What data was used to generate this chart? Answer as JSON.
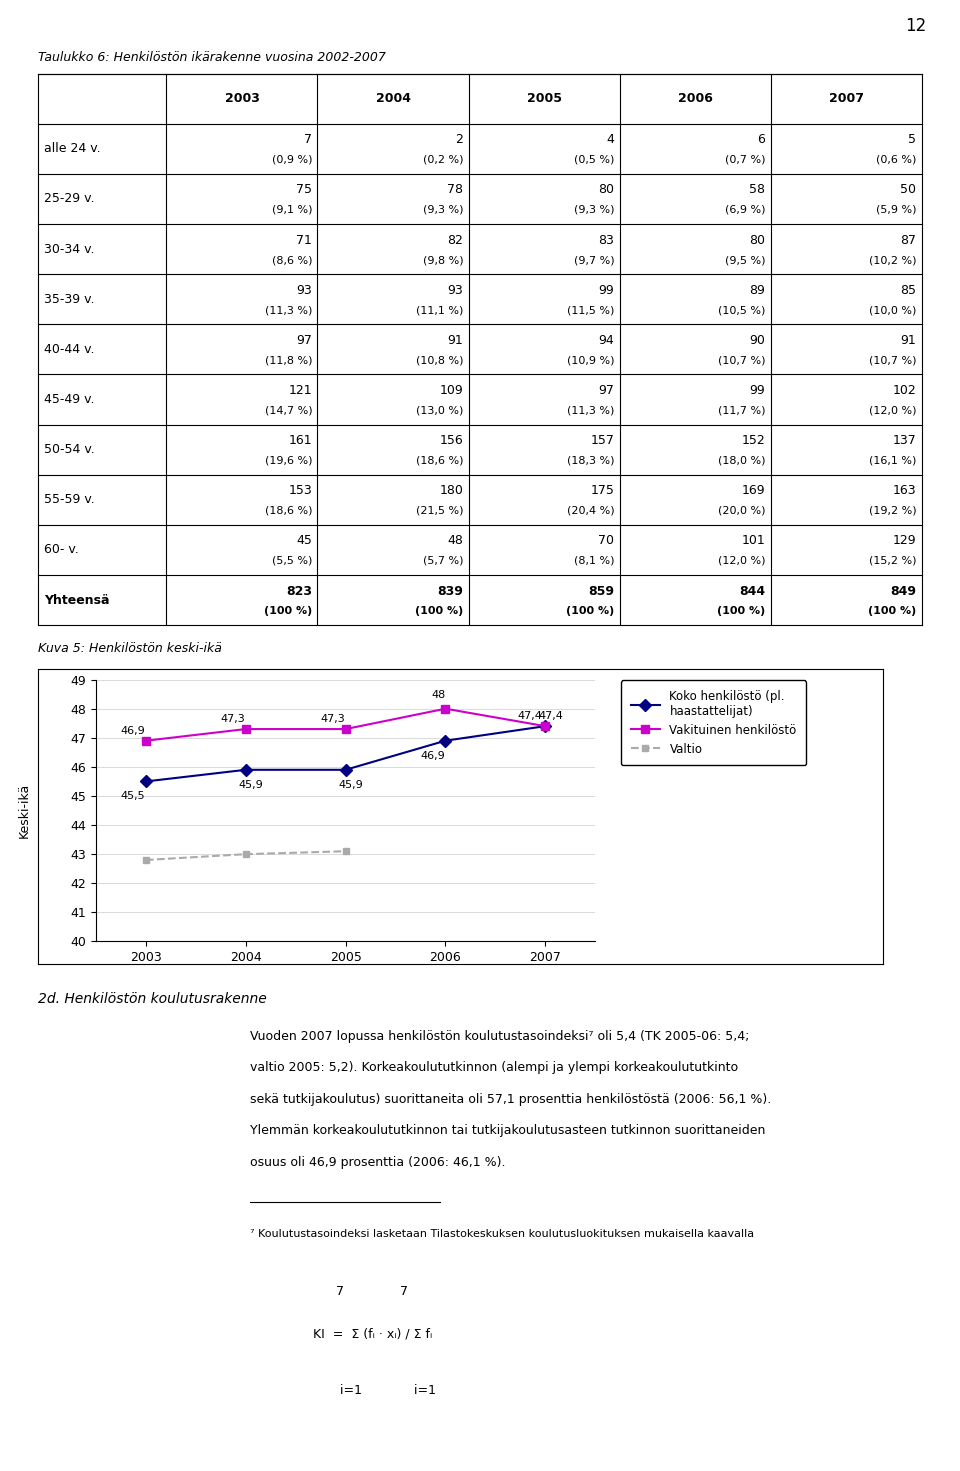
{
  "page_number": "12",
  "table_title": "Taulukko 6: Henkilöstön ikärakenne vuosina 2002-2007",
  "table_headers": [
    "",
    "2003",
    "2004",
    "2005",
    "2006",
    "2007"
  ],
  "table_rows": [
    [
      "alle 24 v.",
      "7\n(0,9 %)",
      "2\n(0,2 %)",
      "4\n(0,5 %)",
      "6\n(0,7 %)",
      "5\n(0,6 %)"
    ],
    [
      "25-29 v.",
      "75\n(9,1 %)",
      "78\n(9,3 %)",
      "80\n(9,3 %)",
      "58\n(6,9 %)",
      "50\n(5,9 %)"
    ],
    [
      "30-34 v.",
      "71\n(8,6 %)",
      "82\n(9,8 %)",
      "83\n(9,7 %)",
      "80\n(9,5 %)",
      "87\n(10,2 %)"
    ],
    [
      "35-39 v.",
      "93\n(11,3 %)",
      "93\n(11,1 %)",
      "99\n(11,5 %)",
      "89\n(10,5 %)",
      "85\n(10,0 %)"
    ],
    [
      "40-44 v.",
      "97\n(11,8 %)",
      "91\n(10,8 %)",
      "94\n(10,9 %)",
      "90\n(10,7 %)",
      "91\n(10,7 %)"
    ],
    [
      "45-49 v.",
      "121\n(14,7 %)",
      "109\n(13,0 %)",
      "97\n(11,3 %)",
      "99\n(11,7 %)",
      "102\n(12,0 %)"
    ],
    [
      "50-54 v.",
      "161\n(19,6 %)",
      "156\n(18,6 %)",
      "157\n(18,3 %)",
      "152\n(18,0 %)",
      "137\n(16,1 %)"
    ],
    [
      "55-59 v.",
      "153\n(18,6 %)",
      "180\n(21,5 %)",
      "175\n(20,4 %)",
      "169\n(20,0 %)",
      "163\n(19,2 %)"
    ],
    [
      "60- v.",
      "45\n(5,5 %)",
      "48\n(5,7 %)",
      "70\n(8,1 %)",
      "101\n(12,0 %)",
      "129\n(15,2 %)"
    ],
    [
      "Yhteensä",
      "823\n(100 %)",
      "839\n(100 %)",
      "859\n(100 %)",
      "844\n(100 %)",
      "849\n(100 %)"
    ]
  ],
  "chart_title": "Kuva 5: Henkilöstön keski-ikä",
  "chart_ylabel": "Keski-ikä",
  "chart_years": [
    2003,
    2004,
    2005,
    2006,
    2007
  ],
  "chart_ylim": [
    40,
    49
  ],
  "chart_yticks": [
    40,
    41,
    42,
    43,
    44,
    45,
    46,
    47,
    48,
    49
  ],
  "series": {
    "koko": {
      "label": "Koko henkilöstö (pl.\nhaastattelijat)",
      "values": [
        45.5,
        45.9,
        45.9,
        46.9,
        47.4
      ],
      "labels": [
        "45,5",
        "45,9",
        "45,9",
        "46,9",
        "47,4"
      ],
      "color": "#000080",
      "marker": "D",
      "linestyle": "-"
    },
    "vakituinen": {
      "label": "Vakituinen henkilöstö",
      "values": [
        46.9,
        47.3,
        47.3,
        48.0,
        47.4
      ],
      "labels": [
        "46,9",
        "47,3",
        "47,3",
        "48",
        "47,4"
      ],
      "color": "#cc00cc",
      "marker": "s",
      "linestyle": "-"
    },
    "valtio": {
      "label": "Valtio",
      "values": [
        42.8,
        43.0,
        43.1,
        null,
        null
      ],
      "labels": [
        "",
        "",
        "",
        "",
        ""
      ],
      "color": "#aaaaaa",
      "marker": "s",
      "linestyle": "--"
    }
  },
  "section_title": "2d. Henkilöstön koulutusrakenne",
  "body_text_lines": [
    "Vuoden 2007 lopussa henkilöstön koulutustasoindeksi⁷ oli 5,4 (TK 2005-06: 5,4;",
    "valtio 2005: 5,2). Korkeakoulututkinnon (alempi ja ylempi korkeakoulututkinto",
    "sekä tutkijakoulutus) suorittaneita oli 57,1 prosenttia henkilöstöstä (2006: 56,1 %).",
    "Ylemmän korkeakoulututkinnon tai tutkijakoulutusasteen tutkinnon suorittaneiden",
    "osuus oli 46,9 prosenttia (2006: 46,1 %)."
  ],
  "footnote_text": "⁷ Koulutustasoindeksi lasketaan Tilastokeskuksen koulutusluokituksen mukaisella kaavalla"
}
